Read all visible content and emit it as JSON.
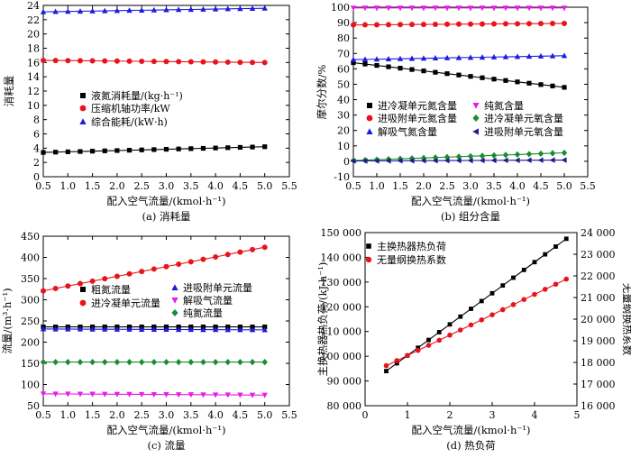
{
  "chart_data": [
    {
      "id": "a",
      "type": "line",
      "caption": "(a) 消耗量",
      "xlabel": "配入空气流量/(kmol·h⁻¹)",
      "ylabel": "消耗量",
      "xlim": [
        0.5,
        5.5
      ],
      "ylim": [
        0,
        24
      ],
      "xticks": [
        0.5,
        1.0,
        1.5,
        2.0,
        2.5,
        3.0,
        3.5,
        4.0,
        4.5,
        5.0,
        5.5
      ],
      "yticks": [
        0,
        2,
        4,
        6,
        8,
        10,
        12,
        14,
        16,
        18,
        20,
        22,
        24
      ],
      "legend_position": "center-left",
      "x_start": 0.5,
      "x_end": 5.0,
      "x_step": 0.25,
      "series": [
        {
          "name": "液氮消耗量/(kg·h⁻¹)",
          "color": "#000000",
          "marker": "square",
          "start": 3.4,
          "end": 4.2
        },
        {
          "name": "压缩机轴功率/kW",
          "color": "#e8141c",
          "marker": "circle",
          "start": 16.3,
          "end": 16.0
        },
        {
          "name": "综合能耗/(kW·h)",
          "color": "#1c1cdc",
          "marker": "triangle-up",
          "start": 23.1,
          "end": 23.6
        }
      ]
    },
    {
      "id": "b",
      "type": "line",
      "caption": "(b) 组分含量",
      "xlabel": "配入空气流量/(kmol·h⁻¹)",
      "ylabel": "摩尔分数/%",
      "xlim": [
        0.5,
        5.5
      ],
      "ylim": [
        -10,
        100
      ],
      "xticks": [
        0.5,
        1.0,
        1.5,
        2.0,
        2.5,
        3.0,
        3.5,
        4.0,
        4.5,
        5.0,
        5.5
      ],
      "yticks": [
        -10,
        0,
        10,
        20,
        30,
        40,
        50,
        60,
        70,
        80,
        90,
        100
      ],
      "legend_position": "center",
      "x_start": 0.5,
      "x_end": 5.0,
      "x_step": 0.25,
      "series": [
        {
          "name": "进冷凝单元氮含量",
          "color": "#000000",
          "marker": "square",
          "start": 64.0,
          "end": 48.0
        },
        {
          "name": "进吸附单元氮含量",
          "color": "#e8141c",
          "marker": "circle",
          "start": 88.5,
          "end": 89.5
        },
        {
          "name": "解吸气氮含量",
          "color": "#1c1cdc",
          "marker": "triangle-up",
          "start": 66.0,
          "end": 68.5
        },
        {
          "name": "纯氮含量",
          "color": "#e61ee6",
          "marker": "triangle-down",
          "start": 99.5,
          "end": 99.5
        },
        {
          "name": "进冷凝单元氧含量",
          "color": "#1a8c2e",
          "marker": "diamond",
          "start": 0.5,
          "end": 5.5
        },
        {
          "name": "进吸附单元氧含量",
          "color": "#1c1c8c",
          "marker": "triangle-left",
          "start": 0.2,
          "end": 0.8
        }
      ]
    },
    {
      "id": "c",
      "type": "line",
      "caption": "(c) 流量",
      "xlabel": "配入空气流量/(kmol·h⁻¹)",
      "ylabel": "流量/(m³·h⁻¹)",
      "xlim": [
        0.5,
        5.5
      ],
      "ylim": [
        50,
        450
      ],
      "xticks": [
        0.5,
        1.0,
        1.5,
        2.0,
        2.5,
        3.0,
        3.5,
        4.0,
        4.5,
        5.0,
        5.5
      ],
      "yticks": [
        50,
        100,
        150,
        200,
        250,
        300,
        350,
        400,
        450
      ],
      "legend_position": "center",
      "x_start": 0.5,
      "x_end": 5.0,
      "x_step": 0.25,
      "series": [
        {
          "name": "粗氮流量",
          "color": "#000000",
          "marker": "square",
          "start": 236,
          "end": 236
        },
        {
          "name": "进冷凝单元流量",
          "color": "#e8141c",
          "marker": "circle",
          "start": 321,
          "end": 424
        },
        {
          "name": "进吸附单元流量",
          "color": "#1c1cdc",
          "marker": "triangle-up",
          "start": 231,
          "end": 229
        },
        {
          "name": "解吸气流量",
          "color": "#e61ee6",
          "marker": "triangle-down",
          "start": 78,
          "end": 75
        },
        {
          "name": "纯氮流量",
          "color": "#1a8c2e",
          "marker": "diamond",
          "start": 153,
          "end": 153
        }
      ]
    },
    {
      "id": "d",
      "type": "line",
      "caption": "(d) 热负荷",
      "xlabel": "配入空气流量/(kmol·h⁻¹)",
      "ylabel": "主换热器热负荷/(kJ·h⁻¹)",
      "ylabel_right": "无量纲换热系数",
      "xlim": [
        0,
        5
      ],
      "ylim": [
        80000,
        150000
      ],
      "ylim_right": [
        16000,
        24000
      ],
      "xticks": [
        0,
        1,
        2,
        3,
        4,
        5
      ],
      "yticks": [
        80000,
        90000,
        100000,
        110000,
        120000,
        130000,
        140000,
        150000
      ],
      "yticks_right": [
        16000,
        17000,
        18000,
        19000,
        20000,
        21000,
        22000,
        23000,
        24000
      ],
      "legend_position": "top-left",
      "x_start": 0.5,
      "x_end": 4.75,
      "x_step": 0.25,
      "series": [
        {
          "name": "主换热器热负荷",
          "color": "#000000",
          "marker": "square",
          "axis": "left",
          "start": 94000,
          "end": 147500,
          "fit_line": true
        },
        {
          "name": "无量纲换热系数",
          "color": "#e8141c",
          "marker": "circle",
          "axis": "right",
          "start": 17850,
          "end": 21850,
          "fit_line": true
        }
      ]
    }
  ]
}
